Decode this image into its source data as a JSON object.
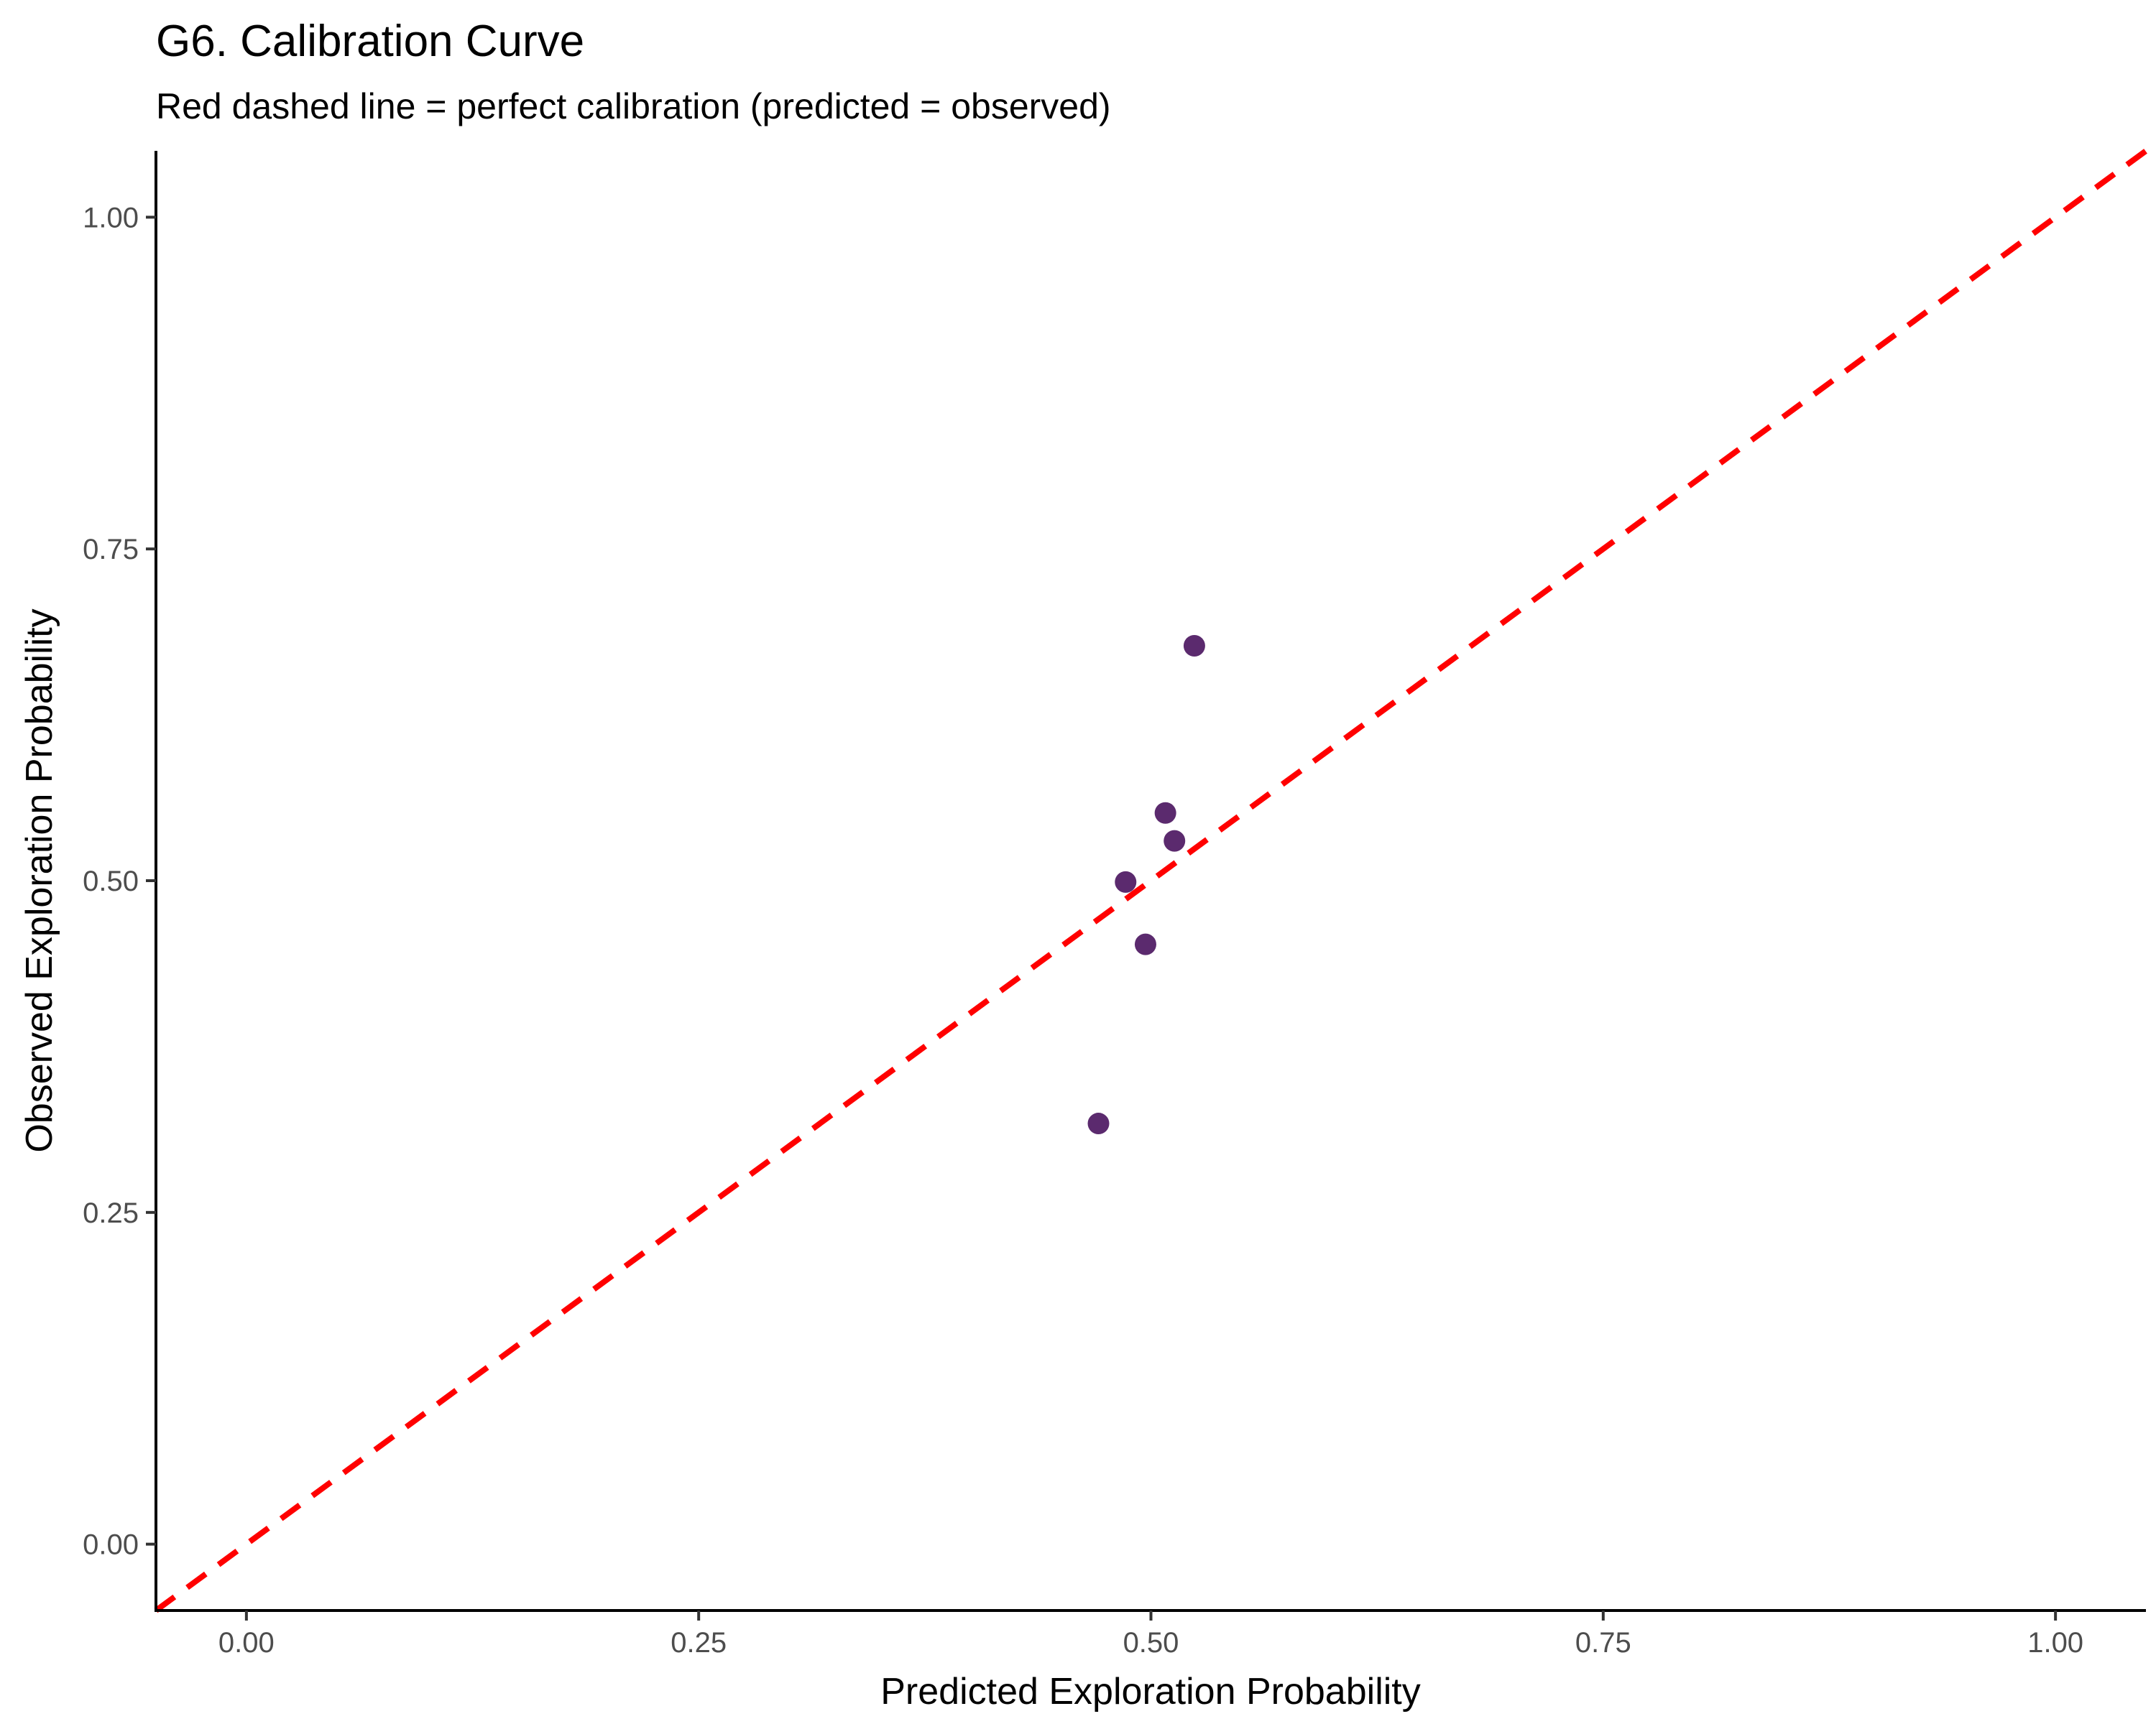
{
  "chart_data": {
    "type": "scatter",
    "title": "G6. Calibration Curve",
    "subtitle": "Red dashed line = perfect calibration (predicted = observed)",
    "xlabel": "Predicted Exploration Probability",
    "ylabel": "Observed Exploration Probability",
    "xlim": [
      -0.05,
      1.05
    ],
    "ylim": [
      -0.05,
      1.05
    ],
    "xticks": [
      "0.00",
      "0.25",
      "0.50",
      "0.75",
      "1.00"
    ],
    "yticks": [
      "0.00",
      "0.25",
      "0.50",
      "0.75",
      "1.00"
    ],
    "tick_values": [
      0,
      0.25,
      0.5,
      0.75,
      1.0
    ],
    "points": [
      {
        "x": 0.471,
        "y": 0.317
      },
      {
        "x": 0.486,
        "y": 0.499
      },
      {
        "x": 0.497,
        "y": 0.452
      },
      {
        "x": 0.508,
        "y": 0.551
      },
      {
        "x": 0.513,
        "y": 0.53
      },
      {
        "x": 0.524,
        "y": 0.677
      }
    ],
    "reference_line": {
      "from": [
        -0.05,
        -0.05
      ],
      "to": [
        1.05,
        1.05
      ],
      "style": "dashed"
    },
    "colors": {
      "points": "#5b2a6e",
      "reference_line": "#ff0000",
      "axis": "#000000"
    },
    "grid": false,
    "legend": "none"
  }
}
